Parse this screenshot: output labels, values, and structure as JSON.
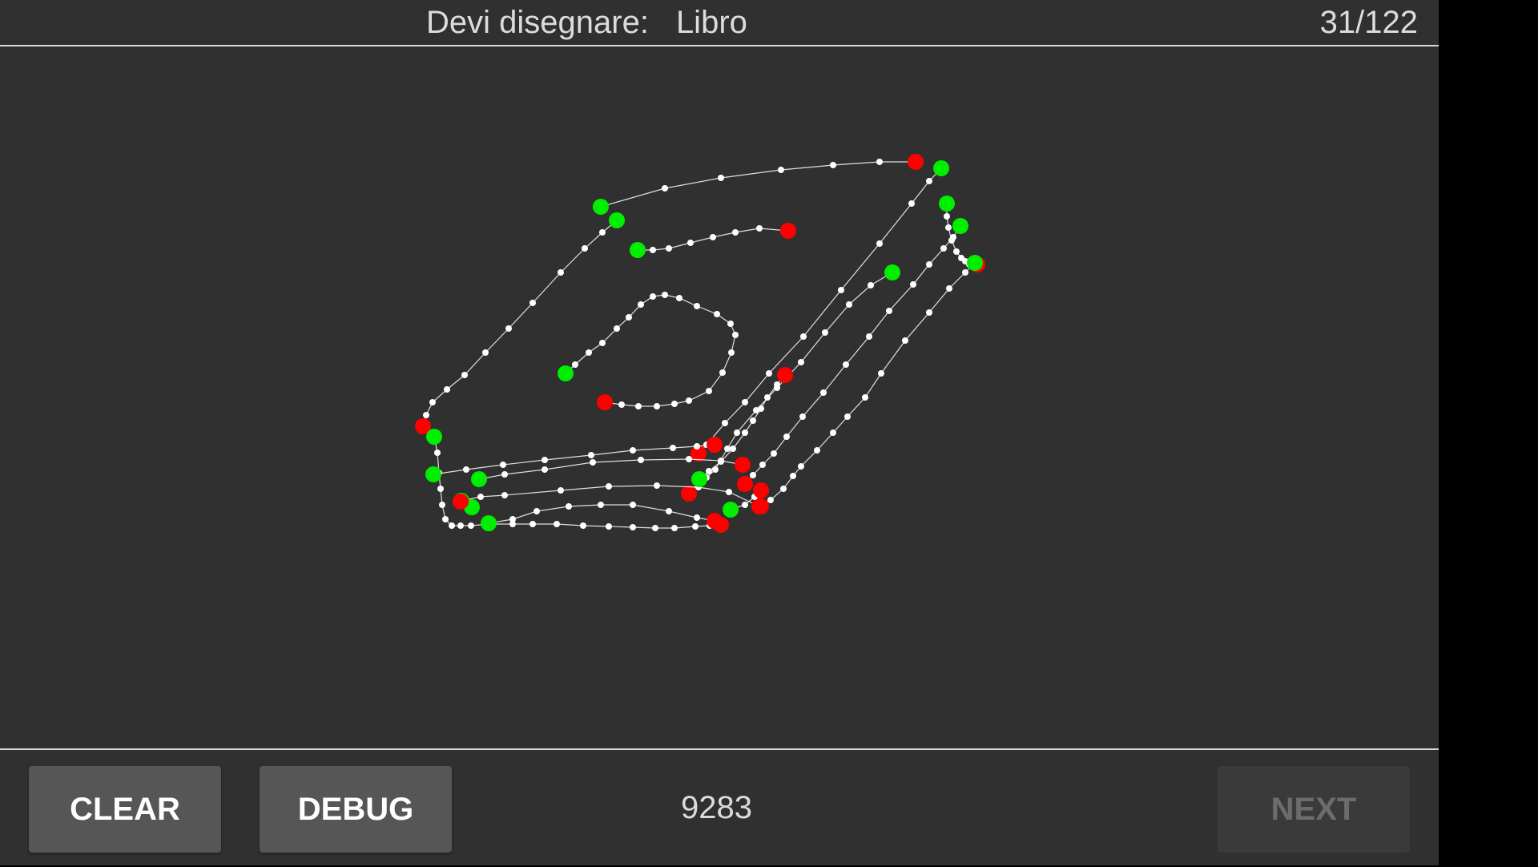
{
  "header": {
    "prompt_label": "Devi disegnare:",
    "prompt_word": "Libro",
    "progress": "31/122"
  },
  "footer": {
    "clear_label": "CLEAR",
    "debug_label": "DEBUG",
    "score": "9283",
    "next_label": "NEXT"
  },
  "colors": {
    "background": "#303030",
    "stroke": "#ffffff",
    "stroke_start": "#00ee00",
    "stroke_end": "#ff0000"
  }
}
